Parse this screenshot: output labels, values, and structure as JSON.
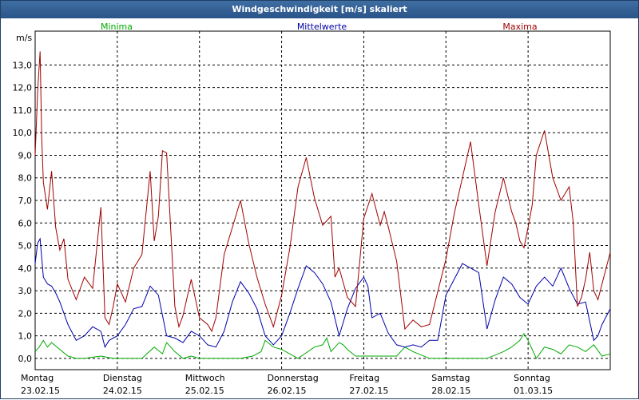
{
  "window": {
    "title": "Windgeschwindigkeit [m/s] skaliert"
  },
  "chart_data": {
    "type": "line",
    "title": "Windgeschwindigkeit [m/s] skaliert",
    "ylabel": "m/s",
    "ylim": [
      -0.5,
      14.5
    ],
    "yticks": [
      "0,0",
      "1,0",
      "2,0",
      "3,0",
      "4,0",
      "5,0",
      "6,0",
      "7,0",
      "8,0",
      "9,0",
      "10,0",
      "11,0",
      "12,0",
      "13,0"
    ],
    "ytick_values": [
      0,
      1,
      2,
      3,
      4,
      5,
      6,
      7,
      8,
      9,
      10,
      11,
      12,
      13
    ],
    "x_days": [
      {
        "day": "Montag",
        "date": "23.02.15"
      },
      {
        "day": "Dienstag",
        "date": "24.02.15"
      },
      {
        "day": "Mittwoch",
        "date": "25.02.15"
      },
      {
        "day": "Donnerstag",
        "date": "26.02.15"
      },
      {
        "day": "Freitag",
        "date": "27.02.15"
      },
      {
        "day": "Samstag",
        "date": "28.02.15"
      },
      {
        "day": "Sonntag",
        "date": "01.03.15"
      }
    ],
    "xlim": [
      0,
      7
    ],
    "grid": true,
    "legend_placement": "top",
    "series": [
      {
        "name": "Minima",
        "color": "#00aa00",
        "x": [
          0,
          0.05,
          0.1,
          0.15,
          0.2,
          0.3,
          0.4,
          0.5,
          0.6,
          0.8,
          0.95,
          1.0,
          1.1,
          1.3,
          1.45,
          1.55,
          1.6,
          1.7,
          1.8,
          1.9,
          2.0,
          2.1,
          2.3,
          2.5,
          2.65,
          2.75,
          2.8,
          2.9,
          3.0,
          3.2,
          3.4,
          3.5,
          3.55,
          3.6,
          3.7,
          3.75,
          3.8,
          3.9,
          4.0,
          4.2,
          4.4,
          4.5,
          4.6,
          4.8,
          5.0,
          5.5,
          5.7,
          5.8,
          5.9,
          5.95,
          6.0,
          6.05,
          6.1,
          6.2,
          6.3,
          6.4,
          6.5,
          6.6,
          6.7,
          6.8,
          6.9,
          7.0
        ],
        "values": [
          0.3,
          0.5,
          0.8,
          0.5,
          0.7,
          0.4,
          0.1,
          0.0,
          0.0,
          0.1,
          0.0,
          0.0,
          0.0,
          0.0,
          0.5,
          0.2,
          0.7,
          0.3,
          0.0,
          0.1,
          0.0,
          0.0,
          0.0,
          0.0,
          0.1,
          0.3,
          0.8,
          0.5,
          0.4,
          0.0,
          0.5,
          0.6,
          0.9,
          0.3,
          0.7,
          0.6,
          0.4,
          0.1,
          0.1,
          0.1,
          0.1,
          0.5,
          0.3,
          0.0,
          0.0,
          0.0,
          0.3,
          0.5,
          0.8,
          1.1,
          0.8,
          0.4,
          0.0,
          0.5,
          0.4,
          0.2,
          0.6,
          0.5,
          0.3,
          0.6,
          0.1,
          0.2
        ]
      },
      {
        "name": "Mittelwerte",
        "color": "#0000aa",
        "x": [
          0,
          0.03,
          0.06,
          0.1,
          0.15,
          0.2,
          0.25,
          0.3,
          0.4,
          0.5,
          0.6,
          0.7,
          0.8,
          0.85,
          0.9,
          1.0,
          1.1,
          1.2,
          1.3,
          1.4,
          1.5,
          1.6,
          1.7,
          1.8,
          1.9,
          2.0,
          2.1,
          2.2,
          2.3,
          2.4,
          2.5,
          2.6,
          2.7,
          2.8,
          2.9,
          3.0,
          3.1,
          3.2,
          3.3,
          3.4,
          3.5,
          3.6,
          3.7,
          3.8,
          3.9,
          4.0,
          4.05,
          4.1,
          4.2,
          4.3,
          4.4,
          4.5,
          4.6,
          4.7,
          4.8,
          4.9,
          5.0,
          5.2,
          5.4,
          5.5,
          5.6,
          5.7,
          5.8,
          5.9,
          6.0,
          6.1,
          6.2,
          6.3,
          6.4,
          6.5,
          6.6,
          6.7,
          6.8,
          6.85,
          6.9,
          7.0
        ],
        "values": [
          4.2,
          5.1,
          5.3,
          3.6,
          3.3,
          3.2,
          2.9,
          2.5,
          1.5,
          0.8,
          1.0,
          1.4,
          1.2,
          0.5,
          0.8,
          1.0,
          1.5,
          2.2,
          2.3,
          3.2,
          2.8,
          1.0,
          0.9,
          0.7,
          1.2,
          1.0,
          0.6,
          0.5,
          1.2,
          2.5,
          3.4,
          2.9,
          2.2,
          1.0,
          0.6,
          1.0,
          2.0,
          3.1,
          4.1,
          3.8,
          3.3,
          2.5,
          1.0,
          2.2,
          3.1,
          3.6,
          3.2,
          1.8,
          2.0,
          1.1,
          0.6,
          0.5,
          0.6,
          0.5,
          0.8,
          0.8,
          2.8,
          4.2,
          3.8,
          1.3,
          2.6,
          3.6,
          3.3,
          2.7,
          2.4,
          3.2,
          3.6,
          3.2,
          4.0,
          3.1,
          2.4,
          2.5,
          0.8,
          1.0,
          1.5,
          2.2
        ]
      },
      {
        "name": "Maxima",
        "color": "#a00000",
        "x": [
          0,
          0.03,
          0.06,
          0.08,
          0.1,
          0.15,
          0.2,
          0.25,
          0.3,
          0.35,
          0.4,
          0.5,
          0.6,
          0.7,
          0.8,
          0.85,
          0.9,
          0.95,
          1.0,
          1.1,
          1.2,
          1.3,
          1.4,
          1.45,
          1.5,
          1.55,
          1.6,
          1.7,
          1.75,
          1.8,
          1.9,
          2.0,
          2.1,
          2.15,
          2.2,
          2.3,
          2.4,
          2.5,
          2.6,
          2.7,
          2.8,
          2.9,
          3.0,
          3.1,
          3.2,
          3.3,
          3.4,
          3.5,
          3.6,
          3.65,
          3.7,
          3.8,
          3.9,
          4.0,
          4.1,
          4.2,
          4.25,
          4.3,
          4.4,
          4.5,
          4.6,
          4.7,
          4.8,
          5.0,
          5.1,
          5.2,
          5.3,
          5.4,
          5.5,
          5.6,
          5.7,
          5.8,
          5.85,
          5.9,
          5.95,
          6.0,
          6.05,
          6.1,
          6.2,
          6.3,
          6.4,
          6.5,
          6.55,
          6.6,
          6.65,
          6.7,
          6.75,
          6.8,
          6.85,
          6.9,
          7.0
        ],
        "values": [
          9.0,
          11.8,
          13.6,
          9.8,
          7.8,
          6.6,
          8.3,
          5.8,
          4.8,
          5.3,
          3.5,
          2.6,
          3.6,
          3.1,
          6.7,
          1.8,
          1.5,
          2.3,
          3.3,
          2.5,
          4.0,
          4.6,
          8.3,
          5.2,
          6.3,
          9.2,
          9.1,
          2.3,
          1.4,
          1.9,
          3.5,
          1.8,
          1.5,
          1.2,
          1.8,
          4.6,
          5.8,
          7.0,
          5.1,
          3.6,
          2.4,
          1.4,
          2.8,
          4.9,
          7.6,
          8.9,
          7.1,
          5.9,
          6.3,
          3.6,
          4.0,
          2.7,
          2.3,
          6.2,
          7.3,
          5.9,
          6.5,
          5.8,
          4.3,
          1.3,
          1.7,
          1.4,
          1.5,
          4.4,
          6.4,
          8.0,
          9.6,
          6.8,
          4.1,
          6.5,
          8.0,
          6.5,
          6.0,
          5.2,
          4.9,
          5.8,
          6.8,
          9.0,
          10.1,
          8.0,
          7.0,
          7.6,
          6.0,
          2.3,
          2.7,
          3.5,
          4.7,
          3.0,
          2.6,
          3.3,
          4.7
        ]
      }
    ]
  }
}
